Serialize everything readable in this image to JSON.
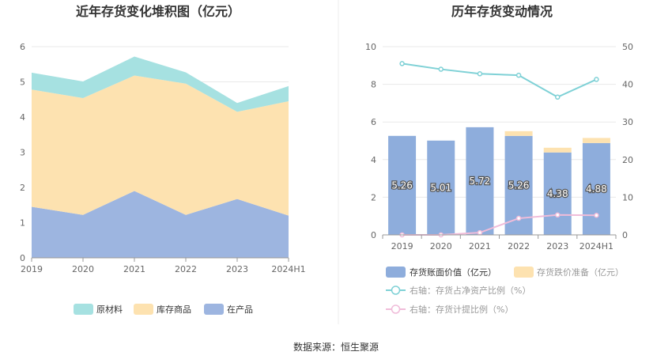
{
  "source": "数据来源：恒生聚源",
  "chart_data": [
    {
      "type": "area",
      "title": "近年存货变化堆积图（亿元）",
      "categories": [
        "2019",
        "2020",
        "2021",
        "2022",
        "2023",
        "2024H1"
      ],
      "ylim": [
        0,
        6
      ],
      "yticks": [
        0,
        1,
        2,
        3,
        4,
        5,
        6
      ],
      "stacked": true,
      "grid": true,
      "legend_position": "bottom",
      "series": [
        {
          "name": "在产品",
          "color": "#9db5e0",
          "values": [
            1.45,
            1.22,
            1.9,
            1.22,
            1.67,
            1.2
          ]
        },
        {
          "name": "库存商品",
          "color": "#fde2b0",
          "values": [
            3.33,
            3.32,
            3.28,
            3.73,
            2.48,
            3.25
          ]
        },
        {
          "name": "原材料",
          "color": "#a6e1e1",
          "values": [
            0.48,
            0.47,
            0.54,
            0.32,
            0.25,
            0.43
          ]
        }
      ],
      "legend_order": [
        "原材料",
        "库存商品",
        "在产品"
      ]
    },
    {
      "type": "bar",
      "title": "历年存货变动情况",
      "categories": [
        "2019",
        "2020",
        "2021",
        "2022",
        "2023",
        "2024H1"
      ],
      "ylim": [
        0,
        10
      ],
      "yticks": [
        0,
        2,
        4,
        6,
        8,
        10
      ],
      "y2lim": [
        0,
        50
      ],
      "y2ticks": [
        0,
        10,
        20,
        30,
        40,
        50
      ],
      "grid": true,
      "legend_position": "bottom",
      "series": [
        {
          "name": "存货账面价值（亿元）",
          "kind": "bar",
          "color": "#8eaddc",
          "values": [
            5.26,
            5.01,
            5.72,
            5.26,
            4.38,
            4.88
          ],
          "labels": [
            "5.26",
            "5.01",
            "5.72",
            "5.26",
            "4.38",
            "4.88"
          ]
        },
        {
          "name": "存货跌价准备（亿元）",
          "kind": "bar",
          "color": "#fde2b0",
          "values": [
            0.0,
            0.0,
            0.0,
            0.25,
            0.25,
            0.27
          ]
        },
        {
          "name": "右轴：存货占净资产比例（%）",
          "kind": "line",
          "axis": "right",
          "color": "#7fd1d6",
          "values": [
            45.5,
            44,
            42.8,
            42.4,
            36.6,
            41.3
          ]
        },
        {
          "name": "右轴：存货计提比例（%）",
          "kind": "line",
          "axis": "right",
          "color": "#f0bcd9",
          "values": [
            0,
            0,
            0.6,
            4.4,
            5.3,
            5.2
          ]
        }
      ]
    }
  ]
}
